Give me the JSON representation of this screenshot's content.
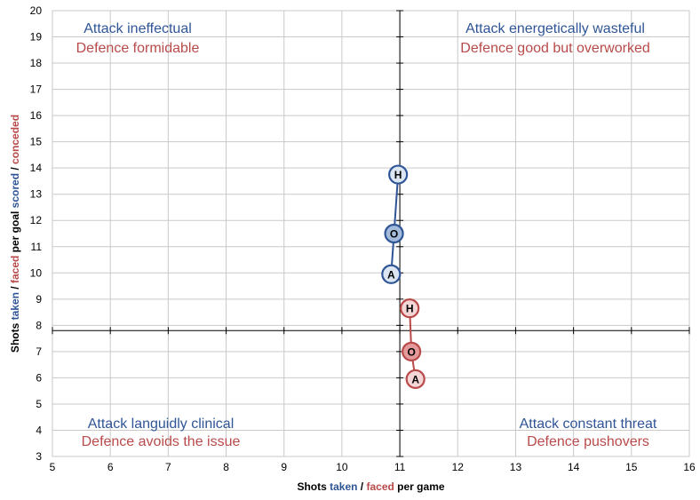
{
  "colors": {
    "attack": "#2f5597",
    "defence": "#b94a4a",
    "grid": "#c9c9c9",
    "axis": "#000000",
    "attack_fill_light": "#dce6f2",
    "attack_fill_mid": "#a4bcdc",
    "defence_fill_light": "#f5d6d6",
    "defence_fill_mid": "#e49a9a"
  },
  "chart_data": {
    "type": "scatter",
    "x_axis": {
      "label_parts": [
        "Shots ",
        "taken",
        " / ",
        "faced",
        " per game"
      ],
      "min": 5,
      "max": 16,
      "ticks": [
        5,
        6,
        7,
        8,
        9,
        10,
        11,
        12,
        13,
        14,
        15,
        16
      ],
      "crosses_at": 7.8
    },
    "y_axis": {
      "label_parts": [
        "Shots ",
        "taken",
        " / ",
        "faced",
        " per goal ",
        "scored",
        " / ",
        "conceded"
      ],
      "min": 3,
      "max": 20,
      "ticks": [
        3,
        4,
        5,
        6,
        7,
        8,
        9,
        10,
        11,
        12,
        13,
        14,
        15,
        16,
        17,
        18,
        19,
        20
      ],
      "crosses_at": 11
    },
    "grid": true,
    "quadrants": [
      {
        "corner": "top-left",
        "attack": "Attack ineffectual",
        "defence": "Defence formidable"
      },
      {
        "corner": "top-right",
        "attack": "Attack energetically wasteful",
        "defence": "Defence good but overworked"
      },
      {
        "corner": "bottom-left",
        "attack": "Attack languidly clinical",
        "defence": "Defence avoids the issue"
      },
      {
        "corner": "bottom-right",
        "attack": "Attack constant threat",
        "defence": "Defence pushovers"
      }
    ],
    "series": [
      {
        "group": "attack",
        "points": [
          {
            "label": "H",
            "x": 10.97,
            "y": 13.75
          },
          {
            "label": "O",
            "x": 10.9,
            "y": 11.5
          },
          {
            "label": "A",
            "x": 10.85,
            "y": 9.95
          }
        ]
      },
      {
        "group": "defence",
        "points": [
          {
            "label": "H",
            "x": 11.17,
            "y": 8.65
          },
          {
            "label": "O",
            "x": 11.2,
            "y": 7.0
          },
          {
            "label": "A",
            "x": 11.27,
            "y": 5.95
          }
        ]
      }
    ]
  }
}
